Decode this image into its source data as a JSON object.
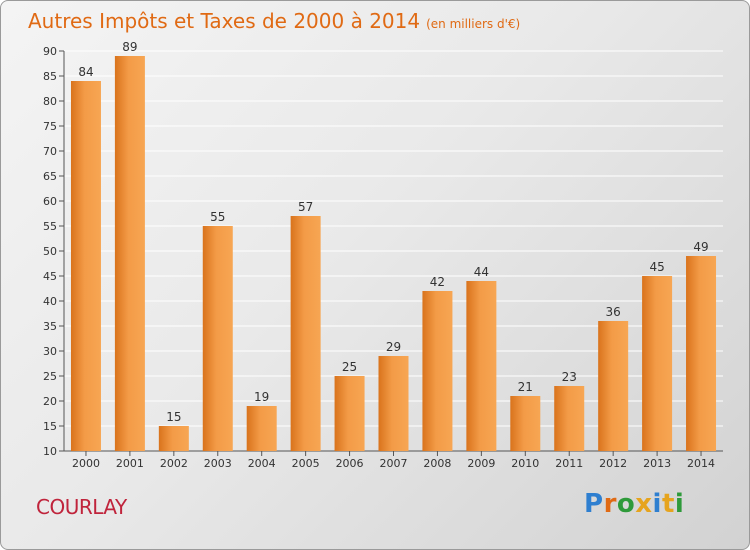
{
  "header": {
    "title": "Autres Impôts et Taxes de 2000 à 2014",
    "subtitle": "(en milliers d'€)"
  },
  "footer": {
    "city": "COURLAY",
    "brand": "Proxiti"
  },
  "colors": {
    "accent": "#e06a14",
    "bar_light": "#f7a653",
    "bar_dark": "#d9731c",
    "city": "#c0243c",
    "brand_letters": [
      "#2e7fd0",
      "#e06a14",
      "#2e9a3a",
      "#e6a41e",
      "#2e7fd0",
      "#e6a41e",
      "#2e9a3a"
    ]
  },
  "chart_data": {
    "type": "bar",
    "title": "Autres Impôts et Taxes de 2000 à 2014",
    "subtitle": "(en milliers d'€)",
    "xlabel": "",
    "ylabel": "",
    "categories": [
      "2000",
      "2001",
      "2002",
      "2003",
      "2004",
      "2005",
      "2006",
      "2007",
      "2008",
      "2009",
      "2010",
      "2011",
      "2012",
      "2013",
      "2014"
    ],
    "values": [
      84,
      89,
      15,
      55,
      19,
      57,
      25,
      29,
      42,
      44,
      21,
      23,
      36,
      45,
      49
    ],
    "ylim": [
      10,
      90
    ],
    "yticks": [
      10,
      15,
      20,
      25,
      30,
      35,
      40,
      45,
      50,
      55,
      60,
      65,
      70,
      75,
      80,
      85,
      90
    ],
    "grid": true,
    "legend": "none"
  }
}
